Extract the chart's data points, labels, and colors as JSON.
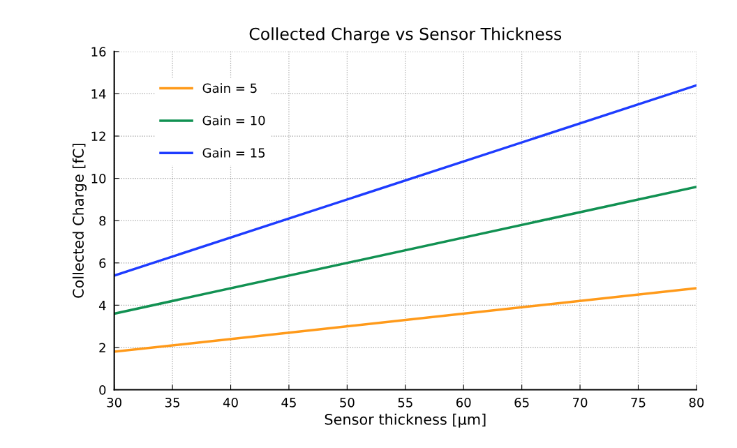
{
  "chart_data": {
    "type": "line",
    "title": "Collected Charge vs Sensor Thickness",
    "xlabel": "Sensor thickness [μm]",
    "ylabel": "Collected Charge [fC]",
    "x": [
      30,
      80
    ],
    "series": [
      {
        "name": "Gain = 5",
        "color": "#ff9a1a",
        "values": [
          1.8,
          4.8
        ]
      },
      {
        "name": "Gain = 10",
        "color": "#119152",
        "values": [
          3.6,
          9.6
        ]
      },
      {
        "name": "Gain = 15",
        "color": "#1e3cff",
        "values": [
          5.4,
          14.4
        ]
      }
    ],
    "xlim": [
      30,
      80
    ],
    "xticks": [
      30,
      35,
      40,
      45,
      50,
      55,
      60,
      65,
      70,
      75,
      80
    ],
    "ylim": [
      0,
      16
    ],
    "yticks": [
      0,
      2,
      4,
      6,
      8,
      10,
      12,
      14,
      16
    ],
    "grid": true,
    "legend": "top left",
    "marker": "none",
    "line_style": "solid"
  }
}
